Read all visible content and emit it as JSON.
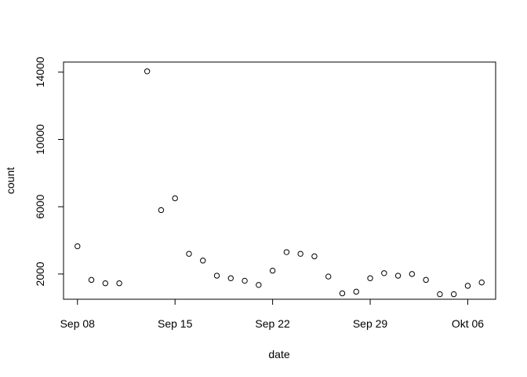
{
  "chart_data": {
    "type": "scatter",
    "xlabel": "date",
    "ylabel": "count",
    "x_ticks": [
      {
        "date": "2023-09-08",
        "label": "Sep 08"
      },
      {
        "date": "2023-09-15",
        "label": "Sep 15"
      },
      {
        "date": "2023-09-22",
        "label": "Sep 22"
      },
      {
        "date": "2023-09-29",
        "label": "Sep 29"
      },
      {
        "date": "2023-10-06",
        "label": "Okt 06"
      }
    ],
    "y_ticks": [
      2000,
      6000,
      10000,
      14000
    ],
    "xlim": [
      "2023-09-07",
      "2023-10-08"
    ],
    "ylim": [
      500,
      14600
    ],
    "grid": false,
    "points": [
      {
        "x": "2023-09-08",
        "y": 3650
      },
      {
        "x": "2023-09-09",
        "y": 1650
      },
      {
        "x": "2023-09-10",
        "y": 1450
      },
      {
        "x": "2023-09-11",
        "y": 1450
      },
      {
        "x": "2023-09-13",
        "y": 14050
      },
      {
        "x": "2023-09-14",
        "y": 5800
      },
      {
        "x": "2023-09-15",
        "y": 6500
      },
      {
        "x": "2023-09-16",
        "y": 3200
      },
      {
        "x": "2023-09-17",
        "y": 2800
      },
      {
        "x": "2023-09-18",
        "y": 1900
      },
      {
        "x": "2023-09-19",
        "y": 1750
      },
      {
        "x": "2023-09-20",
        "y": 1600
      },
      {
        "x": "2023-09-21",
        "y": 1350
      },
      {
        "x": "2023-09-22",
        "y": 2200
      },
      {
        "x": "2023-09-23",
        "y": 3300
      },
      {
        "x": "2023-09-24",
        "y": 3200
      },
      {
        "x": "2023-09-25",
        "y": 3050
      },
      {
        "x": "2023-09-26",
        "y": 1850
      },
      {
        "x": "2023-09-27",
        "y": 850
      },
      {
        "x": "2023-09-28",
        "y": 950
      },
      {
        "x": "2023-09-29",
        "y": 1750
      },
      {
        "x": "2023-09-30",
        "y": 2050
      },
      {
        "x": "2023-10-01",
        "y": 1900
      },
      {
        "x": "2023-10-02",
        "y": 2000
      },
      {
        "x": "2023-10-03",
        "y": 1650
      },
      {
        "x": "2023-10-04",
        "y": 800
      },
      {
        "x": "2023-10-05",
        "y": 800
      },
      {
        "x": "2023-10-06",
        "y": 1300
      },
      {
        "x": "2023-10-07",
        "y": 1500
      }
    ]
  }
}
